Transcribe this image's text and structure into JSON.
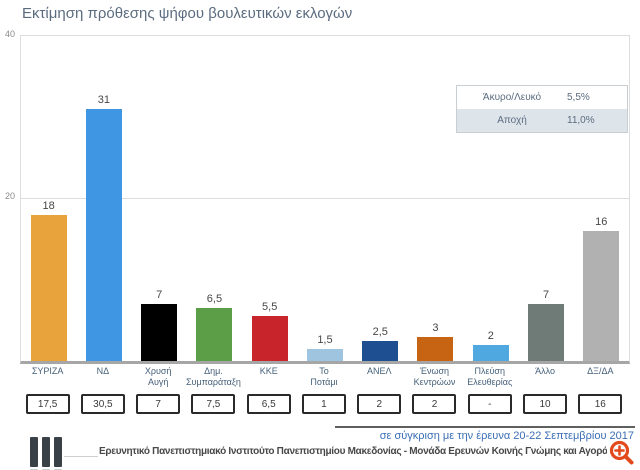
{
  "header": {
    "title": "Εκτίμηση πρόθεσης ψήφου βουλευτικών εκλογών"
  },
  "y_axis": {
    "ticks": [
      "40",
      "20"
    ]
  },
  "legend": {
    "rows": [
      {
        "label": "Άκυρο/Λευκό",
        "value": "5,5%"
      },
      {
        "label": "Αποχή",
        "value": "11,0%"
      }
    ]
  },
  "comparison_note": "σε σύγκριση με την έρευνα 20-22 Σεπτεμβρίου 2017",
  "footer": {
    "text": "Ερευνητικό Πανεπιστημιακό Ινστιτούτο Πανεπιστημίου Μακεδονίας - Μονάδα Ερευνών Κοινής Γνώμης και Αγοράς",
    "logo_icon": "three-vertical-bars-logo",
    "zoom_icon": "zoom-in-icon",
    "zoom_icon_color": "#E2491C"
  },
  "chart_data": {
    "type": "bar",
    "title": "Εκτίμηση πρόθεσης ψήφου βουλευτικών εκλογών",
    "ylim": [
      0,
      40
    ],
    "yticks": [
      20,
      40
    ],
    "grid": "horizontal gridline at 20",
    "legend_position": "top-right",
    "categories": [
      "ΣΥΡΙΖΑ",
      "ΝΔ",
      "Χρυσή Αυγή",
      "Δημ. Συμπαράταξη",
      "ΚΚΕ",
      "Το Ποτάμι",
      "ΑΝΕΛ",
      "Ένωση Κεντρώων",
      "Πλεύση Ελευθερίας",
      "Άλλο",
      "ΔΞ/ΔΑ"
    ],
    "series": [
      {
        "name": "Εκτίμηση πρόθεσης ψήφου",
        "values": [
          18,
          31,
          7,
          6.5,
          5.5,
          1.5,
          2.5,
          3,
          2,
          7,
          16
        ]
      },
      {
        "name": "Έρευνα 20-22 Σεπτεμβρίου 2017",
        "values": [
          17.5,
          30.5,
          7,
          7.5,
          6.5,
          1,
          2,
          2,
          null,
          10,
          16
        ]
      }
    ],
    "bars": [
      {
        "label_lines": [
          "ΣΥΡΙΖΑ"
        ],
        "value": 18,
        "value_label": "18",
        "previous_label": "17,5",
        "color": "#E8A33D"
      },
      {
        "label_lines": [
          "ΝΔ"
        ],
        "value": 31,
        "value_label": "31",
        "previous_label": "30,5",
        "color": "#3F97E4"
      },
      {
        "label_lines": [
          "Χρυσή",
          "Αυγή"
        ],
        "value": 7,
        "value_label": "7",
        "previous_label": "7",
        "color": "#000000"
      },
      {
        "label_lines": [
          "Δημ.",
          "Συμπαράταξη"
        ],
        "value": 6.5,
        "value_label": "6,5",
        "previous_label": "7,5",
        "color": "#5C9E47"
      },
      {
        "label_lines": [
          "ΚΚΕ"
        ],
        "value": 5.5,
        "value_label": "5,5",
        "previous_label": "6,5",
        "color": "#C7242C"
      },
      {
        "label_lines": [
          "Το",
          "Ποτάμι"
        ],
        "value": 1.5,
        "value_label": "1,5",
        "previous_label": "1",
        "color": "#9EC4E0"
      },
      {
        "label_lines": [
          "ΑΝΕΛ"
        ],
        "value": 2.5,
        "value_label": "2,5",
        "previous_label": "2",
        "color": "#1D4F91"
      },
      {
        "label_lines": [
          "Ένωση",
          "Κεντρώων"
        ],
        "value": 3,
        "value_label": "3",
        "previous_label": "2",
        "color": "#C76414"
      },
      {
        "label_lines": [
          "Πλεύση",
          "Ελευθερίας"
        ],
        "value": 2,
        "value_label": "2",
        "previous_label": "-",
        "color": "#4FA9E0"
      },
      {
        "label_lines": [
          "Άλλο"
        ],
        "value": 7,
        "value_label": "7",
        "previous_label": "10",
        "color": "#6F7B77"
      },
      {
        "label_lines": [
          "ΔΞ/ΔΑ"
        ],
        "value": 16,
        "value_label": "16",
        "previous_label": "16",
        "color": "#B1B1B1"
      }
    ]
  }
}
